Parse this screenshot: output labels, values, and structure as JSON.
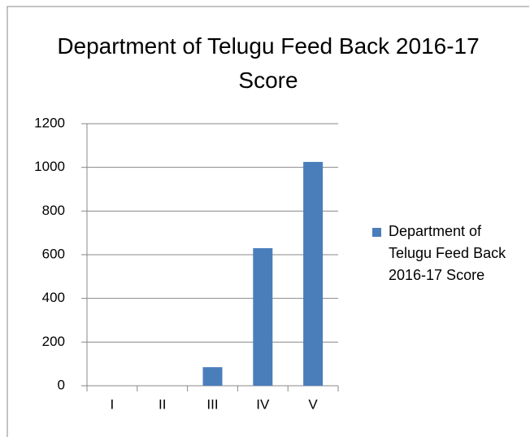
{
  "chart_data": {
    "type": "bar",
    "title": "Department of Telugu Feed Back 2016-17 Score",
    "categories": [
      "I",
      "II",
      "III",
      "IV",
      "V"
    ],
    "series": [
      {
        "name": "Department of Telugu Feed Back 2016-17 Score",
        "color": "#4a7ebb",
        "values": [
          0,
          0,
          85,
          630,
          1025
        ]
      }
    ],
    "ylim": [
      0,
      1200
    ],
    "yticks": [
      0,
      200,
      400,
      600,
      800,
      1000,
      1200
    ],
    "grid": true,
    "legend": "right"
  }
}
